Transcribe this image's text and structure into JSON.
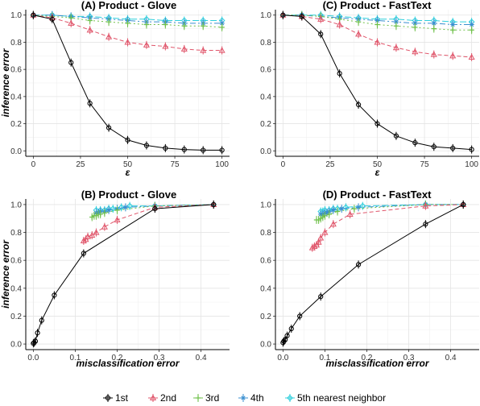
{
  "chart_data": [
    {
      "type": "line",
      "title": "(A) Product - Glove",
      "xlabel": "ε",
      "ylabel": "inference error",
      "xlim": [
        0,
        100
      ],
      "ylim": [
        0,
        1
      ],
      "xticks": [
        "0",
        "25",
        "50",
        "75",
        "100"
      ],
      "yticks": [
        "0.0",
        "0.2",
        "0.4",
        "0.6",
        "0.8",
        "1.0"
      ],
      "series": [
        {
          "name": "1st",
          "x": [
            0,
            10,
            20,
            30,
            40,
            50,
            60,
            70,
            80,
            90,
            100
          ],
          "y": [
            1.0,
            0.97,
            0.65,
            0.35,
            0.17,
            0.08,
            0.04,
            0.02,
            0.01,
            0.005,
            0.005
          ]
        },
        {
          "name": "2nd",
          "x": [
            0,
            10,
            20,
            30,
            40,
            50,
            60,
            70,
            80,
            90,
            100
          ],
          "y": [
            1.0,
            0.98,
            0.94,
            0.89,
            0.84,
            0.8,
            0.78,
            0.77,
            0.75,
            0.74,
            0.74
          ]
        },
        {
          "name": "3rd",
          "x": [
            0,
            10,
            20,
            30,
            40,
            50,
            60,
            70,
            80,
            90,
            100
          ],
          "y": [
            1.0,
            0.99,
            0.98,
            0.96,
            0.95,
            0.94,
            0.93,
            0.93,
            0.92,
            0.92,
            0.91
          ]
        },
        {
          "name": "4th",
          "x": [
            0,
            10,
            20,
            30,
            40,
            50,
            60,
            70,
            80,
            90,
            100
          ],
          "y": [
            1.0,
            1.0,
            0.99,
            0.98,
            0.97,
            0.96,
            0.95,
            0.95,
            0.94,
            0.94,
            0.94
          ]
        },
        {
          "name": "5th nearest neighbor",
          "x": [
            0,
            10,
            20,
            30,
            40,
            50,
            60,
            70,
            80,
            90,
            100
          ],
          "y": [
            1.0,
            1.0,
            0.99,
            0.99,
            0.98,
            0.97,
            0.97,
            0.96,
            0.96,
            0.96,
            0.96
          ]
        }
      ]
    },
    {
      "type": "line",
      "title": "(C) Product - FastText",
      "xlabel": "ε",
      "ylabel": "",
      "xlim": [
        0,
        100
      ],
      "ylim": [
        0,
        1
      ],
      "xticks": [
        "0",
        "25",
        "50",
        "75",
        "100"
      ],
      "yticks": [
        "0.0",
        "0.2",
        "0.4",
        "0.6",
        "0.8",
        "1.0"
      ],
      "series": [
        {
          "name": "1st",
          "x": [
            0,
            10,
            20,
            30,
            40,
            50,
            60,
            70,
            80,
            90,
            100
          ],
          "y": [
            1.0,
            0.99,
            0.86,
            0.57,
            0.34,
            0.2,
            0.11,
            0.06,
            0.03,
            0.02,
            0.01
          ]
        },
        {
          "name": "2nd",
          "x": [
            0,
            10,
            20,
            30,
            40,
            50,
            60,
            70,
            80,
            90,
            100
          ],
          "y": [
            1.0,
            0.99,
            0.97,
            0.93,
            0.86,
            0.8,
            0.76,
            0.73,
            0.71,
            0.7,
            0.69
          ]
        },
        {
          "name": "3rd",
          "x": [
            0,
            10,
            20,
            30,
            40,
            50,
            60,
            70,
            80,
            90,
            100
          ],
          "y": [
            1.0,
            1.0,
            0.99,
            0.97,
            0.95,
            0.93,
            0.92,
            0.91,
            0.9,
            0.89,
            0.89
          ]
        },
        {
          "name": "4th",
          "x": [
            0,
            10,
            20,
            30,
            40,
            50,
            60,
            70,
            80,
            90,
            100
          ],
          "y": [
            1.0,
            1.0,
            0.99,
            0.98,
            0.97,
            0.96,
            0.95,
            0.94,
            0.94,
            0.93,
            0.93
          ]
        },
        {
          "name": "5th nearest neighbor",
          "x": [
            0,
            10,
            20,
            30,
            40,
            50,
            60,
            70,
            80,
            90,
            100
          ],
          "y": [
            1.0,
            1.0,
            1.0,
            0.99,
            0.98,
            0.97,
            0.97,
            0.96,
            0.96,
            0.95,
            0.95
          ]
        }
      ]
    },
    {
      "type": "line",
      "title": "(B) Product - Glove",
      "xlabel": "misclassification error",
      "ylabel": "inference error",
      "xlim": [
        0,
        0.45
      ],
      "ylim": [
        0,
        1
      ],
      "xticks": [
        "0.0",
        "0.1",
        "0.2",
        "0.3",
        "0.4"
      ],
      "yticks": [
        "0.0",
        "0.2",
        "0.4",
        "0.6",
        "0.8",
        "1.0"
      ],
      "series": [
        {
          "name": "1st",
          "x": [
            0.0,
            0.002,
            0.005,
            0.01,
            0.02,
            0.05,
            0.12,
            0.29,
            0.43
          ],
          "y": [
            0.005,
            0.01,
            0.02,
            0.08,
            0.17,
            0.35,
            0.65,
            0.97,
            1.0
          ]
        },
        {
          "name": "2nd",
          "x": [
            0.12,
            0.125,
            0.13,
            0.14,
            0.15,
            0.17,
            0.2,
            0.29,
            0.43
          ],
          "y": [
            0.74,
            0.75,
            0.77,
            0.78,
            0.8,
            0.84,
            0.89,
            0.98,
            1.0
          ]
        },
        {
          "name": "3rd",
          "x": [
            0.14,
            0.145,
            0.15,
            0.155,
            0.16,
            0.17,
            0.2,
            0.29,
            0.43
          ],
          "y": [
            0.91,
            0.92,
            0.92,
            0.93,
            0.93,
            0.94,
            0.96,
            0.99,
            1.0
          ]
        },
        {
          "name": "4th",
          "x": [
            0.15,
            0.155,
            0.16,
            0.17,
            0.18,
            0.2,
            0.22,
            0.29,
            0.43
          ],
          "y": [
            0.94,
            0.94,
            0.95,
            0.95,
            0.96,
            0.97,
            0.98,
            0.99,
            1.0
          ]
        },
        {
          "name": "5th nearest neighbor",
          "x": [
            0.15,
            0.16,
            0.17,
            0.18,
            0.19,
            0.21,
            0.23,
            0.29,
            0.43
          ],
          "y": [
            0.96,
            0.96,
            0.96,
            0.97,
            0.97,
            0.98,
            0.99,
            0.99,
            1.0
          ]
        }
      ]
    },
    {
      "type": "line",
      "title": "(D) Product - FastText",
      "xlabel": "misclassification error",
      "ylabel": "",
      "xlim": [
        0,
        0.45
      ],
      "ylim": [
        0,
        1
      ],
      "xticks": [
        "0.0",
        "0.1",
        "0.2",
        "0.3",
        "0.4"
      ],
      "yticks": [
        "0.0",
        "0.2",
        "0.4",
        "0.6",
        "0.8",
        "1.0"
      ],
      "series": [
        {
          "name": "1st",
          "x": [
            0.0,
            0.002,
            0.005,
            0.01,
            0.02,
            0.04,
            0.09,
            0.18,
            0.34,
            0.43
          ],
          "y": [
            0.01,
            0.02,
            0.03,
            0.06,
            0.11,
            0.2,
            0.34,
            0.57,
            0.86,
            1.0
          ]
        },
        {
          "name": "2nd",
          "x": [
            0.07,
            0.075,
            0.08,
            0.085,
            0.09,
            0.1,
            0.12,
            0.16,
            0.34,
            0.43
          ],
          "y": [
            0.69,
            0.7,
            0.71,
            0.73,
            0.76,
            0.8,
            0.86,
            0.93,
            0.99,
            1.0
          ]
        },
        {
          "name": "3rd",
          "x": [
            0.08,
            0.085,
            0.09,
            0.095,
            0.1,
            0.11,
            0.13,
            0.17,
            0.34,
            0.43
          ],
          "y": [
            0.89,
            0.89,
            0.9,
            0.91,
            0.92,
            0.93,
            0.95,
            0.97,
            1.0,
            1.0
          ]
        },
        {
          "name": "4th",
          "x": [
            0.09,
            0.095,
            0.1,
            0.105,
            0.11,
            0.12,
            0.14,
            0.18,
            0.34,
            0.43
          ],
          "y": [
            0.93,
            0.93,
            0.94,
            0.94,
            0.95,
            0.96,
            0.97,
            0.98,
            1.0,
            1.0
          ]
        },
        {
          "name": "5th nearest neighbor",
          "x": [
            0.09,
            0.095,
            0.1,
            0.11,
            0.12,
            0.13,
            0.15,
            0.19,
            0.34,
            0.43
          ],
          "y": [
            0.95,
            0.95,
            0.96,
            0.96,
            0.97,
            0.97,
            0.98,
            0.99,
            1.0,
            1.0
          ]
        }
      ]
    }
  ],
  "series_styles": [
    {
      "name": "1st",
      "color": "#000000",
      "dash": "",
      "marker": "circle-cross"
    },
    {
      "name": "2nd",
      "color": "#e0566b",
      "dash": "5,3",
      "marker": "triangle"
    },
    {
      "name": "3rd",
      "color": "#6fc04a",
      "dash": "2,3",
      "marker": "plus"
    },
    {
      "name": "4th",
      "color": "#3a8fd0",
      "dash": "7,3,2,3",
      "marker": "star"
    },
    {
      "name": "5th nearest neighbor",
      "color": "#2ecfdc",
      "dash": "8,3",
      "marker": "diamond"
    }
  ],
  "legend": {
    "placement": "bottom",
    "labels": [
      "1st",
      "2nd",
      "3rd",
      "4th",
      "5th nearest neighbor"
    ]
  },
  "grid": true
}
